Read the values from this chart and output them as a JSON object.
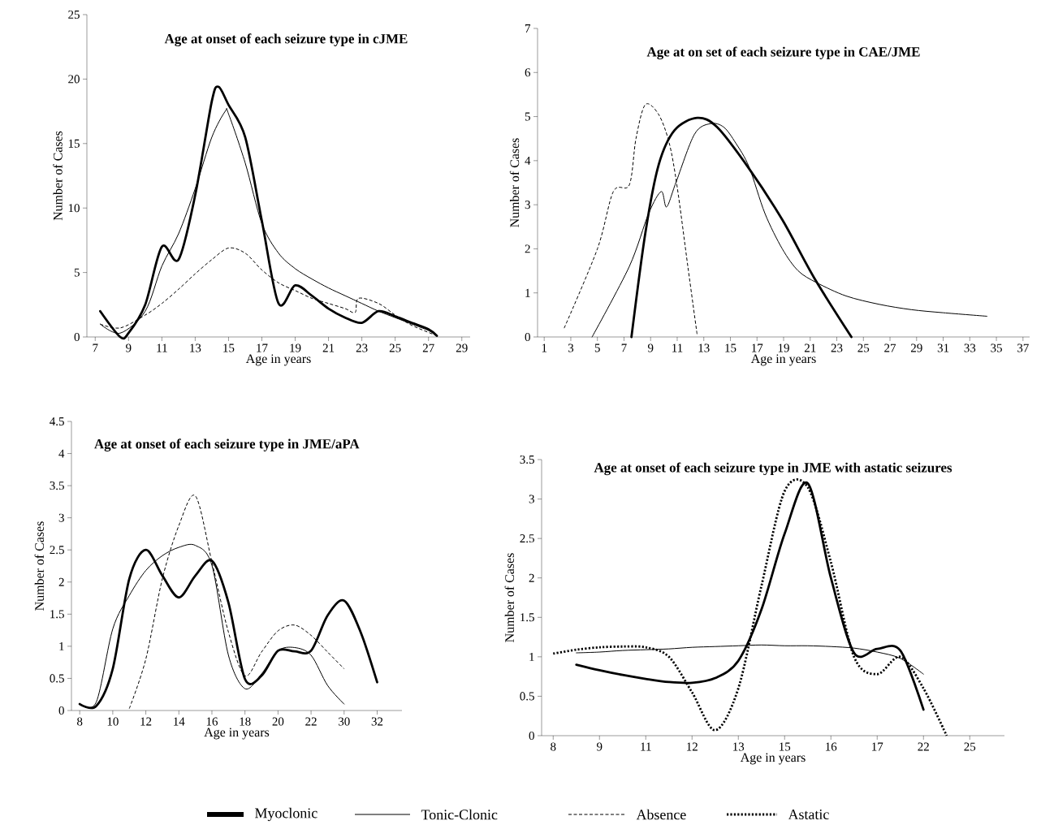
{
  "chart_data": [
    {
      "type": "line",
      "title": "Age at onset of each seizure type in cJME",
      "xlabel": "Age in years",
      "ylabel": "Number of Cases",
      "xlim": [
        6.5,
        29.5
      ],
      "xticks": [
        7,
        9,
        11,
        13,
        15,
        17,
        19,
        21,
        23,
        25,
        27,
        29
      ],
      "ylim": [
        0,
        25
      ],
      "yticks": [
        0,
        5,
        10,
        15,
        20,
        25
      ],
      "legend": "bottom",
      "series": [
        {
          "name": "Myoclonic",
          "color": "#000000",
          "line_style": "solid",
          "x": [
            7.3,
            8.5,
            9,
            10,
            11,
            12,
            13,
            14,
            14.4,
            15,
            16,
            17,
            18,
            19,
            20,
            21,
            22,
            23,
            24,
            25,
            26,
            27,
            27.5
          ],
          "values": [
            2,
            0,
            0.3,
            2.5,
            7,
            6,
            11,
            18.3,
            19.4,
            18,
            15.5,
            9,
            2.6,
            4,
            3.2,
            2.2,
            1.5,
            1.1,
            2,
            1.6,
            1.1,
            0.6,
            0.1
          ]
        },
        {
          "name": "Tonic-Clonic",
          "color": "#000000",
          "line_style": "solid",
          "x": [
            7.3,
            8.5,
            10,
            11,
            12,
            13,
            14,
            14.8,
            15,
            16,
            17,
            18,
            19,
            20,
            21,
            22,
            23,
            24,
            25,
            26,
            27,
            27.5
          ],
          "values": [
            1,
            0.3,
            2,
            5.5,
            8,
            11.5,
            15.5,
            17.5,
            17.3,
            13.5,
            8.8,
            6.5,
            5.3,
            4.5,
            3.8,
            3.2,
            2.6,
            2,
            1.5,
            1,
            0.5,
            0.1
          ]
        },
        {
          "name": "Absence",
          "color": "#000000",
          "line_style": "dashed",
          "x": [
            7.3,
            8.5,
            10,
            11,
            12,
            13,
            14,
            15,
            16,
            17,
            18,
            19,
            20,
            21,
            22,
            22.6,
            22.8,
            24,
            25,
            26,
            27.5
          ],
          "values": [
            1,
            0.7,
            1.7,
            2.6,
            3.7,
            4.9,
            6,
            6.9,
            6.5,
            5.2,
            4.2,
            3.6,
            3,
            2.6,
            2.2,
            1.9,
            3,
            2.6,
            1.7,
            0.9,
            0.1
          ]
        }
      ]
    },
    {
      "type": "line",
      "title": "Age at on set of each seizure type in CAE/JME",
      "xlabel": "Age in years",
      "ylabel": "Number of Cases",
      "xlim": [
        0.5,
        37.5
      ],
      "xticks": [
        1,
        3,
        5,
        7,
        9,
        11,
        13,
        15,
        17,
        19,
        21,
        23,
        25,
        27,
        29,
        31,
        33,
        35,
        37
      ],
      "ylim": [
        0,
        7
      ],
      "yticks": [
        0,
        1,
        2,
        3,
        4,
        5,
        6,
        7
      ],
      "series": [
        {
          "color": "#000000",
          "line_style": "solid",
          "x": [
            7.56,
            8.6,
            9.6,
            10.8,
            12.5,
            14,
            16.4,
            18.9,
            21.3,
            24.1
          ],
          "values": [
            0,
            2.35,
            3.9,
            4.69,
            4.97,
            4.76,
            3.82,
            2.66,
            1.34,
            0
          ]
        },
        {
          "color": "#000000",
          "line_style": "solid",
          "x": [
            4.6,
            7.4,
            8.85,
            9.8,
            10.2,
            10.9,
            12.3,
            13.5,
            14.5,
            15.4,
            16.4,
            17.6,
            18.9,
            20.1,
            21.5,
            23.7,
            26.2,
            28.6,
            31,
            34.3
          ],
          "values": [
            0,
            1.6,
            2.8,
            3.3,
            2.95,
            3.5,
            4.6,
            4.84,
            4.76,
            4.4,
            3.86,
            2.8,
            2,
            1.5,
            1.23,
            0.93,
            0.74,
            0.62,
            0.55,
            0.47
          ]
        },
        {
          "color": "#000000",
          "line_style": "dashed",
          "x": [
            2.5,
            5,
            6.2,
            7.4,
            7.9,
            8.6,
            9.6,
            10.4,
            11,
            11.8,
            12.5
          ],
          "values": [
            0.2,
            2,
            3.3,
            3.45,
            4.5,
            5.27,
            5.05,
            4.4,
            3.4,
            1.6,
            0.05
          ]
        }
      ]
    },
    {
      "type": "line",
      "title": "Age at onset of each seizure type in JME/aPA",
      "xlabel": "Age in years",
      "ylabel": "Number of Cases",
      "categories": [
        "8",
        null,
        "10",
        null,
        "12",
        null,
        "14",
        null,
        "16",
        null,
        "18",
        null,
        "20",
        null,
        "22",
        null,
        "30",
        null,
        "32",
        null
      ],
      "ylim": [
        0,
        4.5
      ],
      "yticks": [
        0,
        0.5,
        1,
        1.5,
        2,
        2.5,
        3,
        3.5,
        4,
        4.5
      ],
      "series": [
        {
          "color": "#000000",
          "line_style": "solid",
          "values": [
            0.1,
            0.07,
            0.65,
            2.05,
            2.5,
            2.1,
            1.76,
            2.1,
            2.33,
            1.68,
            0.49,
            0.54,
            0.93,
            0.92,
            0.93,
            1.48,
            1.71,
            1.22,
            0.44,
            null
          ]
        },
        {
          "color": "#000000",
          "line_style": "solid",
          "values": [
            0.1,
            0.13,
            1.27,
            1.79,
            2.18,
            2.41,
            2.54,
            2.57,
            2.26,
            0.86,
            0.34,
            0.57,
            0.93,
            0.98,
            0.86,
            0.39,
            0.1,
            null,
            null,
            null
          ]
        },
        {
          "color": "#000000",
          "line_style": "dashed",
          "values": [
            null,
            null,
            null,
            0.03,
            0.8,
            2.05,
            2.88,
            3.34,
            2.31,
            1.22,
            0.54,
            0.91,
            1.24,
            1.33,
            1.17,
            0.91,
            0.65,
            null,
            null,
            null
          ]
        }
      ]
    },
    {
      "type": "line",
      "title": "Age at onset of each seizure type in JME with astatic seizures",
      "xlabel": "Age in years",
      "ylabel": "Number of Cases",
      "categories": [
        "8",
        null,
        "9",
        null,
        "11",
        null,
        "12",
        null,
        "13",
        null,
        "15",
        null,
        "16",
        null,
        "17",
        null,
        "22",
        null,
        "25",
        null
      ],
      "ylim": [
        0,
        3.5
      ],
      "yticks": [
        0,
        0.5,
        1,
        1.5,
        2,
        2.5,
        3,
        3.5
      ],
      "legend": "bottom",
      "series": [
        {
          "color": "#000000",
          "line_style": "solid",
          "values": [
            null,
            0.9,
            0.83,
            0.77,
            0.72,
            0.68,
            0.67,
            0.73,
            0.95,
            1.6,
            2.56,
            3.2,
            2,
            1.05,
            1.1,
            1.08,
            0.33,
            null,
            null,
            null
          ]
        },
        {
          "color": "#000000",
          "line_style": "solid",
          "values": [
            null,
            1.05,
            1.06,
            1.08,
            1.09,
            1.1,
            1.12,
            1.13,
            1.14,
            1.15,
            1.14,
            1.14,
            1.13,
            1.11,
            1.06,
            0.98,
            0.78,
            null,
            null,
            null
          ]
        },
        {
          "name": "Astatic",
          "color": "#000000",
          "line_style": "dotted",
          "values": [
            1.04,
            1.09,
            1.12,
            1.13,
            1.12,
            1,
            0.55,
            0.07,
            0.6,
            1.9,
            3.1,
            3.15,
            2.2,
            1,
            0.78,
            1,
            0.6,
            0,
            null,
            null
          ]
        }
      ]
    }
  ]
}
